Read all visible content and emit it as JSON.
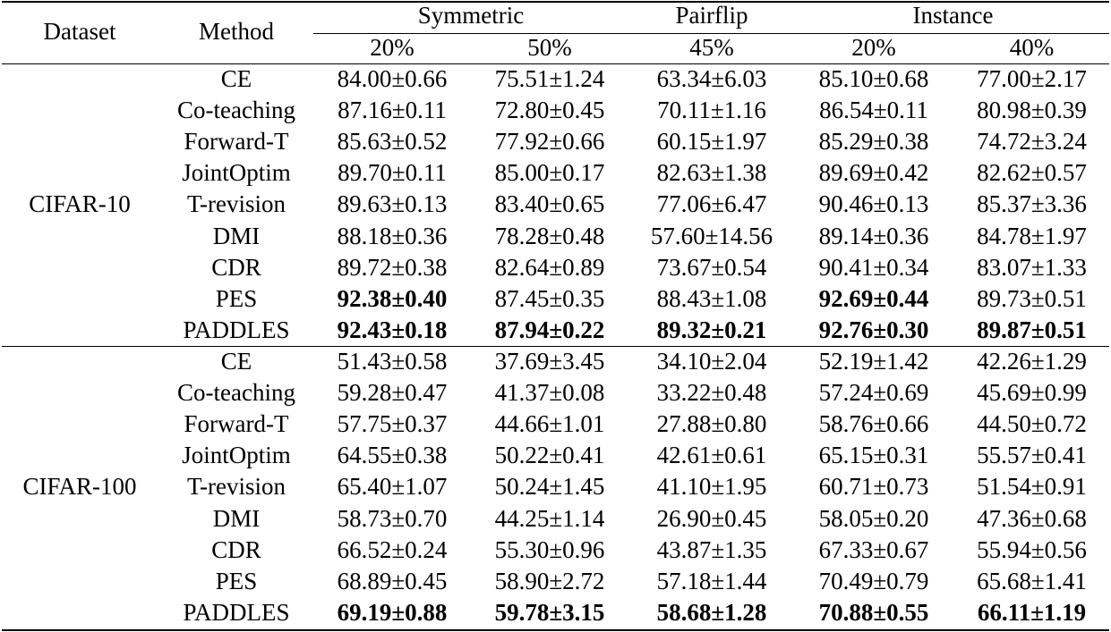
{
  "chart_data": {
    "type": "table",
    "header": {
      "dataset": "Dataset",
      "method": "Method",
      "groups": [
        "Symmetric",
        "Pairflip",
        "Instance"
      ],
      "rates": [
        "20%",
        "50%",
        "45%",
        "20%",
        "40%"
      ]
    },
    "sections": [
      {
        "dataset": "CIFAR-10",
        "rows": [
          {
            "method": "CE",
            "values": [
              "84.00±0.66",
              "75.51±1.24",
              "63.34±6.03",
              "85.10±0.68",
              "77.00±2.17"
            ],
            "bold": [
              false,
              false,
              false,
              false,
              false
            ]
          },
          {
            "method": "Co-teaching",
            "values": [
              "87.16±0.11",
              "72.80±0.45",
              "70.11±1.16",
              "86.54±0.11",
              "80.98±0.39"
            ],
            "bold": [
              false,
              false,
              false,
              false,
              false
            ]
          },
          {
            "method": "Forward-T",
            "values": [
              "85.63±0.52",
              "77.92±0.66",
              "60.15±1.97",
              "85.29±0.38",
              "74.72±3.24"
            ],
            "bold": [
              false,
              false,
              false,
              false,
              false
            ]
          },
          {
            "method": "JointOptim",
            "values": [
              "89.70±0.11",
              "85.00±0.17",
              "82.63±1.38",
              "89.69±0.42",
              "82.62±0.57"
            ],
            "bold": [
              false,
              false,
              false,
              false,
              false
            ]
          },
          {
            "method": "T-revision",
            "values": [
              "89.63±0.13",
              "83.40±0.65",
              "77.06±6.47",
              "90.46±0.13",
              "85.37±3.36"
            ],
            "bold": [
              false,
              false,
              false,
              false,
              false
            ]
          },
          {
            "method": "DMI",
            "values": [
              "88.18±0.36",
              "78.28±0.48",
              "57.60±14.56",
              "89.14±0.36",
              "84.78±1.97"
            ],
            "bold": [
              false,
              false,
              false,
              false,
              false
            ]
          },
          {
            "method": "CDR",
            "values": [
              "89.72±0.38",
              "82.64±0.89",
              "73.67±0.54",
              "90.41±0.34",
              "83.07±1.33"
            ],
            "bold": [
              false,
              false,
              false,
              false,
              false
            ]
          },
          {
            "method": "PES",
            "values": [
              "92.38±0.40",
              "87.45±0.35",
              "88.43±1.08",
              "92.69±0.44",
              "89.73±0.51"
            ],
            "bold": [
              true,
              false,
              false,
              true,
              false
            ]
          },
          {
            "method": "PADDLES",
            "values": [
              "92.43±0.18",
              "87.94±0.22",
              "89.32±0.21",
              "92.76±0.30",
              "89.87±0.51"
            ],
            "bold": [
              true,
              true,
              true,
              true,
              true
            ]
          }
        ]
      },
      {
        "dataset": "CIFAR-100",
        "rows": [
          {
            "method": "CE",
            "values": [
              "51.43±0.58",
              "37.69±3.45",
              "34.10±2.04",
              "52.19±1.42",
              "42.26±1.29"
            ],
            "bold": [
              false,
              false,
              false,
              false,
              false
            ]
          },
          {
            "method": "Co-teaching",
            "values": [
              "59.28±0.47",
              "41.37±0.08",
              "33.22±0.48",
              "57.24±0.69",
              "45.69±0.99"
            ],
            "bold": [
              false,
              false,
              false,
              false,
              false
            ]
          },
          {
            "method": "Forward-T",
            "values": [
              "57.75±0.37",
              "44.66±1.01",
              "27.88±0.80",
              "58.76±0.66",
              "44.50±0.72"
            ],
            "bold": [
              false,
              false,
              false,
              false,
              false
            ]
          },
          {
            "method": "JointOptim",
            "values": [
              "64.55±0.38",
              "50.22±0.41",
              "42.61±0.61",
              "65.15±0.31",
              "55.57±0.41"
            ],
            "bold": [
              false,
              false,
              false,
              false,
              false
            ]
          },
          {
            "method": "T-revision",
            "values": [
              "65.40±1.07",
              "50.24±1.45",
              "41.10±1.95",
              "60.71±0.73",
              "51.54±0.91"
            ],
            "bold": [
              false,
              false,
              false,
              false,
              false
            ]
          },
          {
            "method": "DMI",
            "values": [
              "58.73±0.70",
              "44.25±1.14",
              "26.90±0.45",
              "58.05±0.20",
              "47.36±0.68"
            ],
            "bold": [
              false,
              false,
              false,
              false,
              false
            ]
          },
          {
            "method": "CDR",
            "values": [
              "66.52±0.24",
              "55.30±0.96",
              "43.87±1.35",
              "67.33±0.67",
              "55.94±0.56"
            ],
            "bold": [
              false,
              false,
              false,
              false,
              false
            ]
          },
          {
            "method": "PES",
            "values": [
              "68.89±0.45",
              "58.90±2.72",
              "57.18±1.44",
              "70.49±0.79",
              "65.68±1.41"
            ],
            "bold": [
              false,
              false,
              false,
              false,
              false
            ]
          },
          {
            "method": "PADDLES",
            "values": [
              "69.19±0.88",
              "59.78±3.15",
              "58.68±1.28",
              "70.88±0.55",
              "66.11±1.19"
            ],
            "bold": [
              true,
              true,
              true,
              true,
              true
            ]
          }
        ]
      }
    ]
  }
}
